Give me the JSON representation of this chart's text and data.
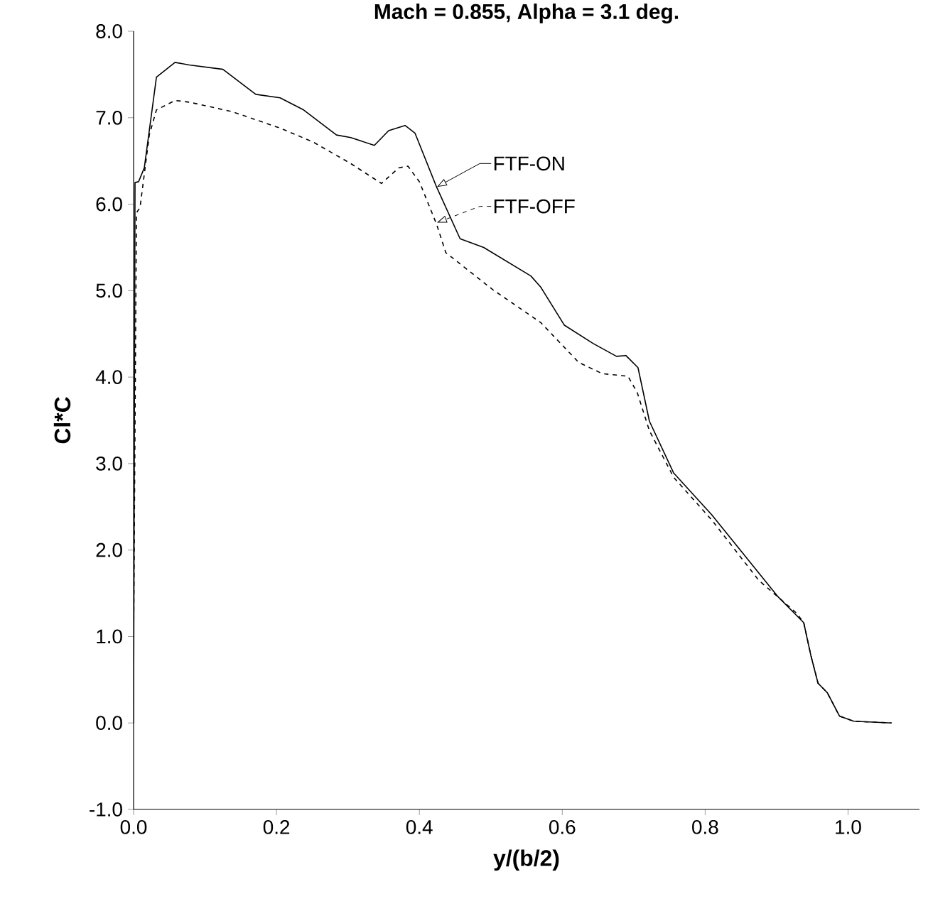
{
  "chart_data": {
    "type": "line",
    "title": "Mach = 0.855, Alpha = 3.1 deg.",
    "xlabel": "y/(b/2)",
    "ylabel": "Cl*C",
    "xlim": [
      0,
      1.1
    ],
    "ylim": [
      -1,
      8
    ],
    "xticks": [
      {
        "value": 0,
        "label": "0.0"
      },
      {
        "value": 0.2,
        "label": "0.2"
      },
      {
        "value": 0.4,
        "label": "0.4"
      },
      {
        "value": 0.6,
        "label": "0.6"
      },
      {
        "value": 0.8,
        "label": "0.8"
      },
      {
        "value": 1.0,
        "label": "1.0"
      }
    ],
    "yticks": [
      {
        "value": -1,
        "label": "-1.0"
      },
      {
        "value": 0,
        "label": "0.0"
      },
      {
        "value": 1,
        "label": "1.0"
      },
      {
        "value": 2,
        "label": "2.0"
      },
      {
        "value": 3,
        "label": "3.0"
      },
      {
        "value": 4,
        "label": "4.0"
      },
      {
        "value": 5,
        "label": "5.0"
      },
      {
        "value": 6,
        "label": "6.0"
      },
      {
        "value": 7,
        "label": "7.0"
      },
      {
        "value": 8,
        "label": "8.0"
      }
    ],
    "grid": false,
    "marker": "none",
    "legend": "top",
    "series": [
      {
        "name": "FTF-ON",
        "color": "#000000",
        "line_style": "solid",
        "x": [
          0.0,
          0.002,
          0.007,
          0.015,
          0.032,
          0.058,
          0.078,
          0.125,
          0.171,
          0.205,
          0.238,
          0.284,
          0.304,
          0.337,
          0.357,
          0.38,
          0.394,
          0.424,
          0.457,
          0.49,
          0.556,
          0.57,
          0.603,
          0.643,
          0.676,
          0.689,
          0.706,
          0.722,
          0.756,
          0.809,
          0.902,
          0.938,
          0.948,
          0.958,
          0.971,
          0.988,
          1.008,
          1.061
        ],
        "values": [
          0.0,
          6.25,
          6.26,
          6.42,
          7.47,
          7.64,
          7.61,
          7.56,
          7.27,
          7.23,
          7.09,
          6.8,
          6.77,
          6.68,
          6.85,
          6.91,
          6.82,
          6.2,
          5.6,
          5.5,
          5.17,
          5.04,
          4.6,
          4.39,
          4.24,
          4.25,
          4.11,
          3.49,
          2.89,
          2.41,
          1.46,
          1.16,
          0.78,
          0.46,
          0.35,
          0.08,
          0.02,
          0.0
        ]
      },
      {
        "name": "FTF-OFF",
        "color": "#000000",
        "line_style": "dashed",
        "x": [
          0.0,
          0.004,
          0.009,
          0.022,
          0.032,
          0.058,
          0.078,
          0.138,
          0.205,
          0.251,
          0.304,
          0.347,
          0.371,
          0.384,
          0.4,
          0.424,
          0.437,
          0.503,
          0.57,
          0.623,
          0.656,
          0.692,
          0.705,
          0.722,
          0.756,
          0.809,
          0.875,
          0.928,
          0.938,
          0.948,
          0.958,
          0.971,
          0.988,
          1.008,
          1.061
        ],
        "values": [
          0.9,
          5.9,
          5.96,
          6.8,
          7.09,
          7.2,
          7.18,
          7.07,
          6.88,
          6.72,
          6.47,
          6.24,
          6.42,
          6.44,
          6.26,
          5.77,
          5.44,
          5.01,
          4.63,
          4.17,
          4.04,
          4.01,
          3.82,
          3.38,
          2.84,
          2.35,
          1.65,
          1.27,
          1.16,
          0.78,
          0.46,
          0.35,
          0.08,
          0.02,
          0.0
        ]
      }
    ]
  }
}
